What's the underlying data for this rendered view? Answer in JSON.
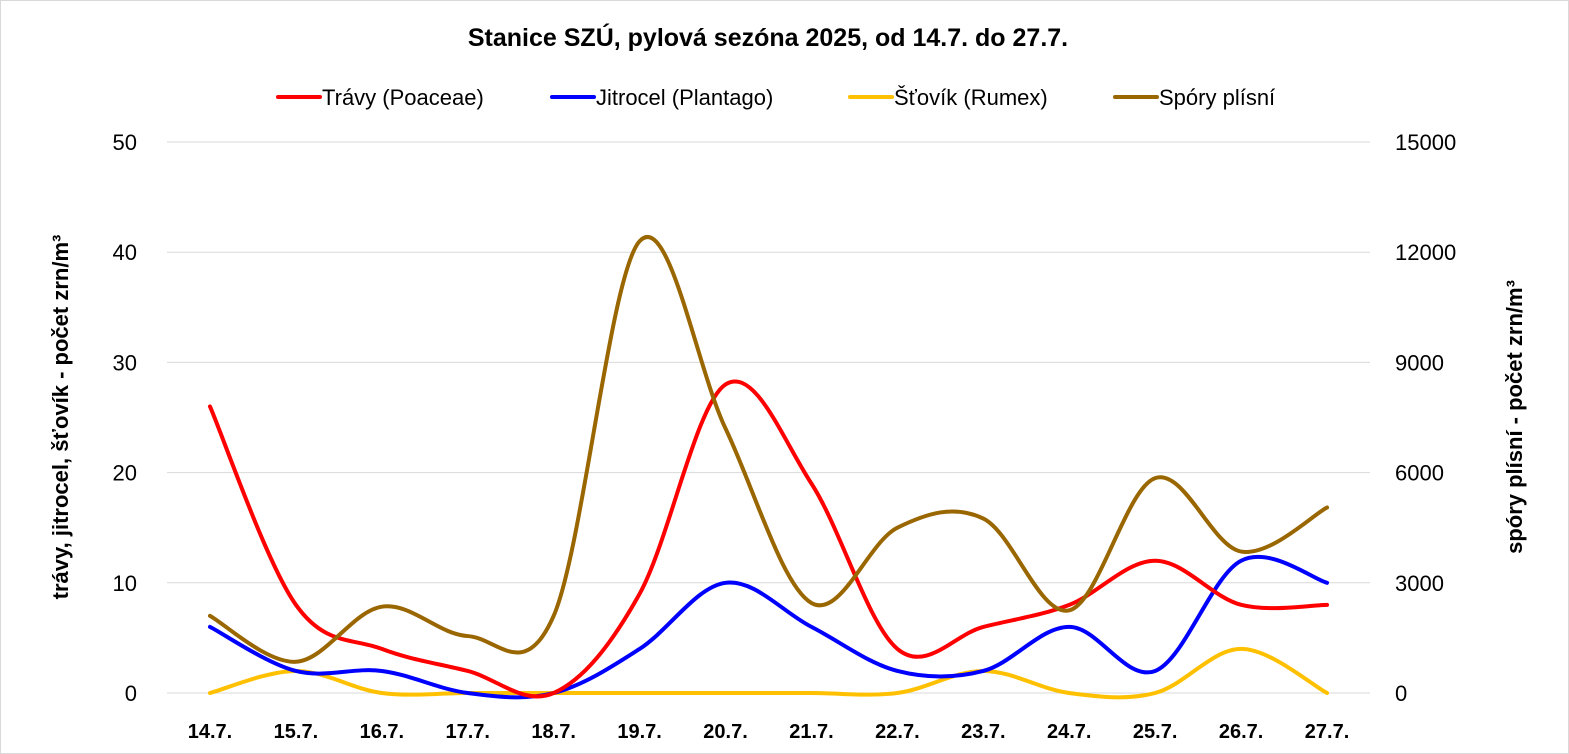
{
  "chart_data": {
    "type": "line",
    "title": "Stanice SZÚ, pylová sezóna 2025, od 14.7. do 27.7.",
    "categories": [
      "14.7.",
      "15.7.",
      "16.7.",
      "17.7.",
      "18.7.",
      "19.7.",
      "20.7.",
      "21.7.",
      "22.7.",
      "23.7.",
      "24.7.",
      "25.7.",
      "26.7.",
      "27.7."
    ],
    "ylabel_left": "trávy, jitrocel, šťovík - počet zrn/m³",
    "ylabel_right": "spóry plísní - počet zrn/m³",
    "ylim_left": [
      0,
      50
    ],
    "yticks_left": [
      "0",
      "10",
      "20",
      "30",
      "40",
      "50"
    ],
    "ylim_right": [
      0,
      15000
    ],
    "yticks_right": [
      "0",
      "3000",
      "6000",
      "9000",
      "12000",
      "15000"
    ],
    "legend_position": "top",
    "grid": true,
    "series": [
      {
        "name": "Trávy (Poaceae)",
        "axis": "left",
        "color": "#ff0000",
        "values": [
          26,
          8,
          4,
          2,
          0,
          9,
          28,
          19,
          4,
          6,
          8,
          12,
          8,
          8
        ]
      },
      {
        "name": "Jitrocel (Plantago)",
        "axis": "left",
        "color": "#0000ff",
        "values": [
          6,
          2,
          2,
          0,
          0,
          4,
          10,
          6,
          2,
          2,
          6,
          2,
          12,
          10
        ]
      },
      {
        "name": "Šťovík (Rumex)",
        "axis": "left",
        "color": "#ffc000",
        "values": [
          0,
          2,
          0,
          0,
          0,
          0,
          0,
          0,
          0,
          2,
          0,
          0,
          4,
          0
        ]
      },
      {
        "name": "Spóry plísní",
        "axis": "right",
        "color": "#996600",
        "values": [
          2100,
          850,
          2350,
          1550,
          2100,
          12300,
          7200,
          2450,
          4500,
          4750,
          2250,
          5850,
          3850,
          5050
        ]
      }
    ]
  }
}
